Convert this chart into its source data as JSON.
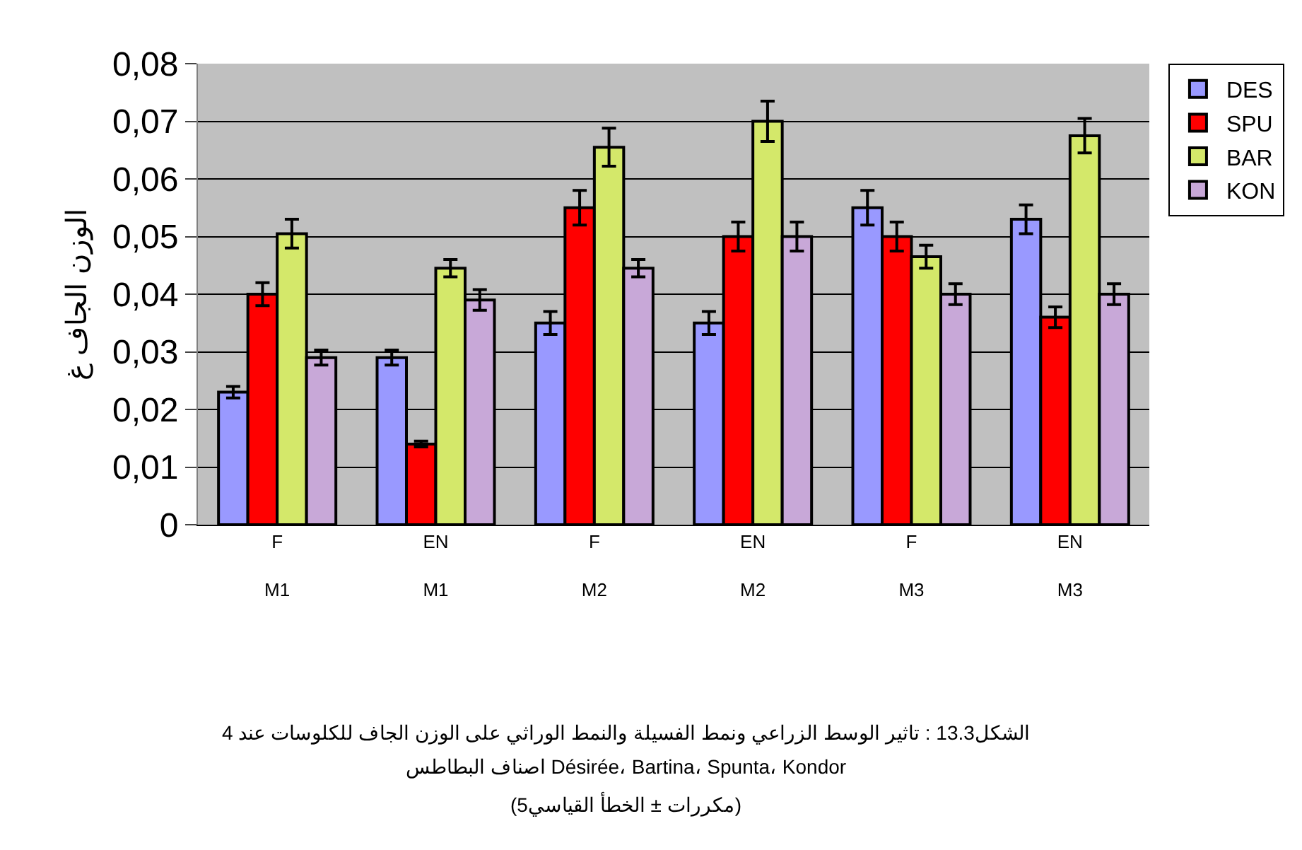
{
  "chart_data": {
    "type": "bar",
    "ylabel": "الوزن الجاف غ",
    "categories": [
      "F\nM1",
      "EN\nM1",
      "F\nM2",
      "EN\nM2",
      "F\nM3",
      "EN\nM3"
    ],
    "series": [
      {
        "name": "DES",
        "color": "#9999ff",
        "values": [
          0.023,
          0.029,
          0.035,
          0.035,
          0.055,
          0.053
        ],
        "errors": [
          0.001,
          0.0013,
          0.002,
          0.002,
          0.003,
          0.0025
        ]
      },
      {
        "name": "SPU",
        "color": "#ff0000",
        "values": [
          0.04,
          0.014,
          0.055,
          0.05,
          0.05,
          0.036
        ],
        "errors": [
          0.002,
          0.0005,
          0.003,
          0.0025,
          0.0025,
          0.0018
        ]
      },
      {
        "name": "BAR",
        "color": "#d4e86a",
        "values": [
          0.0505,
          0.0445,
          0.0655,
          0.07,
          0.0465,
          0.0675
        ],
        "errors": [
          0.0025,
          0.0015,
          0.0033,
          0.0035,
          0.002,
          0.003
        ]
      },
      {
        "name": "KON",
        "color": "#c8a8d8",
        "values": [
          0.029,
          0.039,
          0.0445,
          0.05,
          0.04,
          0.04
        ],
        "errors": [
          0.0013,
          0.0018,
          0.0015,
          0.0025,
          0.0018,
          0.0018
        ]
      }
    ],
    "ylim": [
      0,
      0.08
    ],
    "yticks": [
      {
        "value": 0,
        "label": "0"
      },
      {
        "value": 0.01,
        "label": "0,01"
      },
      {
        "value": 0.02,
        "label": "0,02"
      },
      {
        "value": 0.03,
        "label": "0,03"
      },
      {
        "value": 0.04,
        "label": "0,04"
      },
      {
        "value": 0.05,
        "label": "0,05"
      },
      {
        "value": 0.06,
        "label": "0,06"
      },
      {
        "value": 0.07,
        "label": "0,07"
      },
      {
        "value": 0.08,
        "label": "0,08"
      }
    ],
    "grid": "y",
    "legend": "top right",
    "annotations": [
      "الشكل13.3 : تاثير الوسط الزراعي ونمط الفسيلة والنمط الوراثي على الوزن الجاف للكلوسات عند 4",
      "اصناف البطاطس Désirée، Bartina، Spunta، Kondor",
      "(5مكررات ± الخطأ القياسي)"
    ]
  }
}
